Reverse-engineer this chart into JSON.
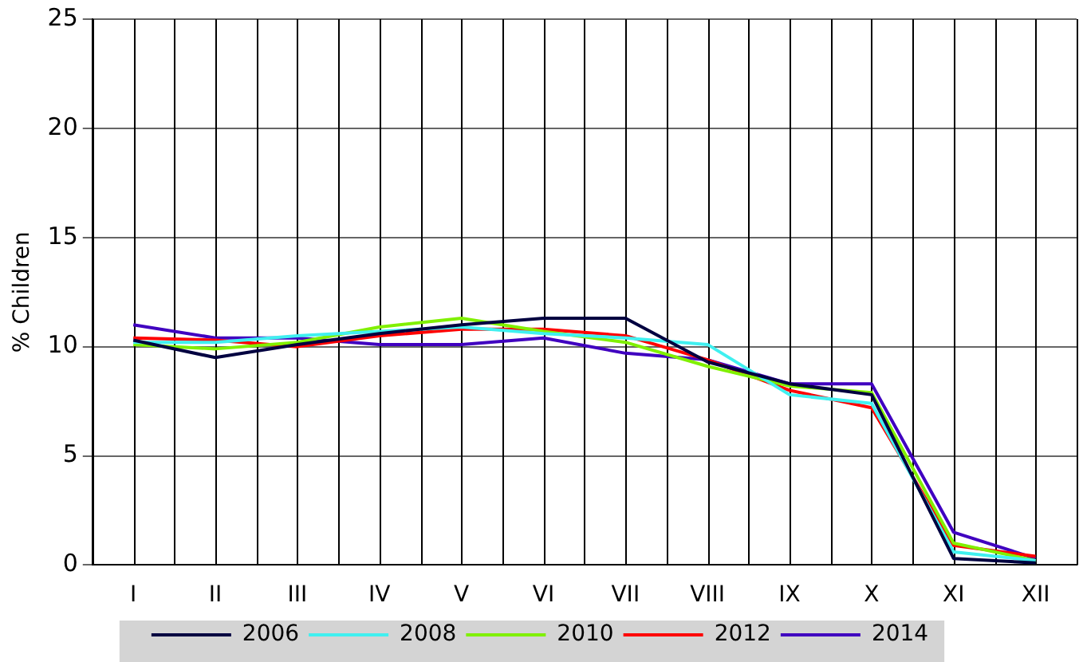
{
  "chart_data": {
    "type": "line",
    "ylabel": "% Children",
    "categories": [
      "I",
      "II",
      "III",
      "IV",
      "V",
      "VI",
      "VII",
      "VIII",
      "IX",
      "X",
      "XI",
      "XII"
    ],
    "series": [
      {
        "name": "2006",
        "color": "#000040",
        "values": [
          10.3,
          9.5,
          10.1,
          10.6,
          11.0,
          11.3,
          11.3,
          9.3,
          8.3,
          7.8,
          0.3,
          0.1
        ]
      },
      {
        "name": "2008",
        "color": "#40f0f0",
        "values": [
          10.2,
          10.2,
          10.5,
          10.7,
          10.9,
          10.6,
          10.4,
          10.1,
          7.8,
          7.4,
          0.6,
          0.2
        ]
      },
      {
        "name": "2010",
        "color": "#80f000",
        "values": [
          10.1,
          9.9,
          10.2,
          10.9,
          11.3,
          10.7,
          10.2,
          9.1,
          8.2,
          7.9,
          1.0,
          0.2
        ]
      },
      {
        "name": "2012",
        "color": "#ff0000",
        "values": [
          10.4,
          10.3,
          10.0,
          10.5,
          10.8,
          10.8,
          10.5,
          9.4,
          8.0,
          7.2,
          0.9,
          0.4
        ]
      },
      {
        "name": "2014",
        "color": "#4000c0",
        "values": [
          11.0,
          10.4,
          10.4,
          10.1,
          10.1,
          10.4,
          9.7,
          9.4,
          8.3,
          8.3,
          1.5,
          0.3
        ]
      }
    ],
    "ylim": [
      0,
      25
    ],
    "yticks": [
      0,
      5,
      10,
      15,
      20,
      25
    ],
    "grid": true,
    "legend": "bottom",
    "marker": "none",
    "line_style": "solid"
  }
}
